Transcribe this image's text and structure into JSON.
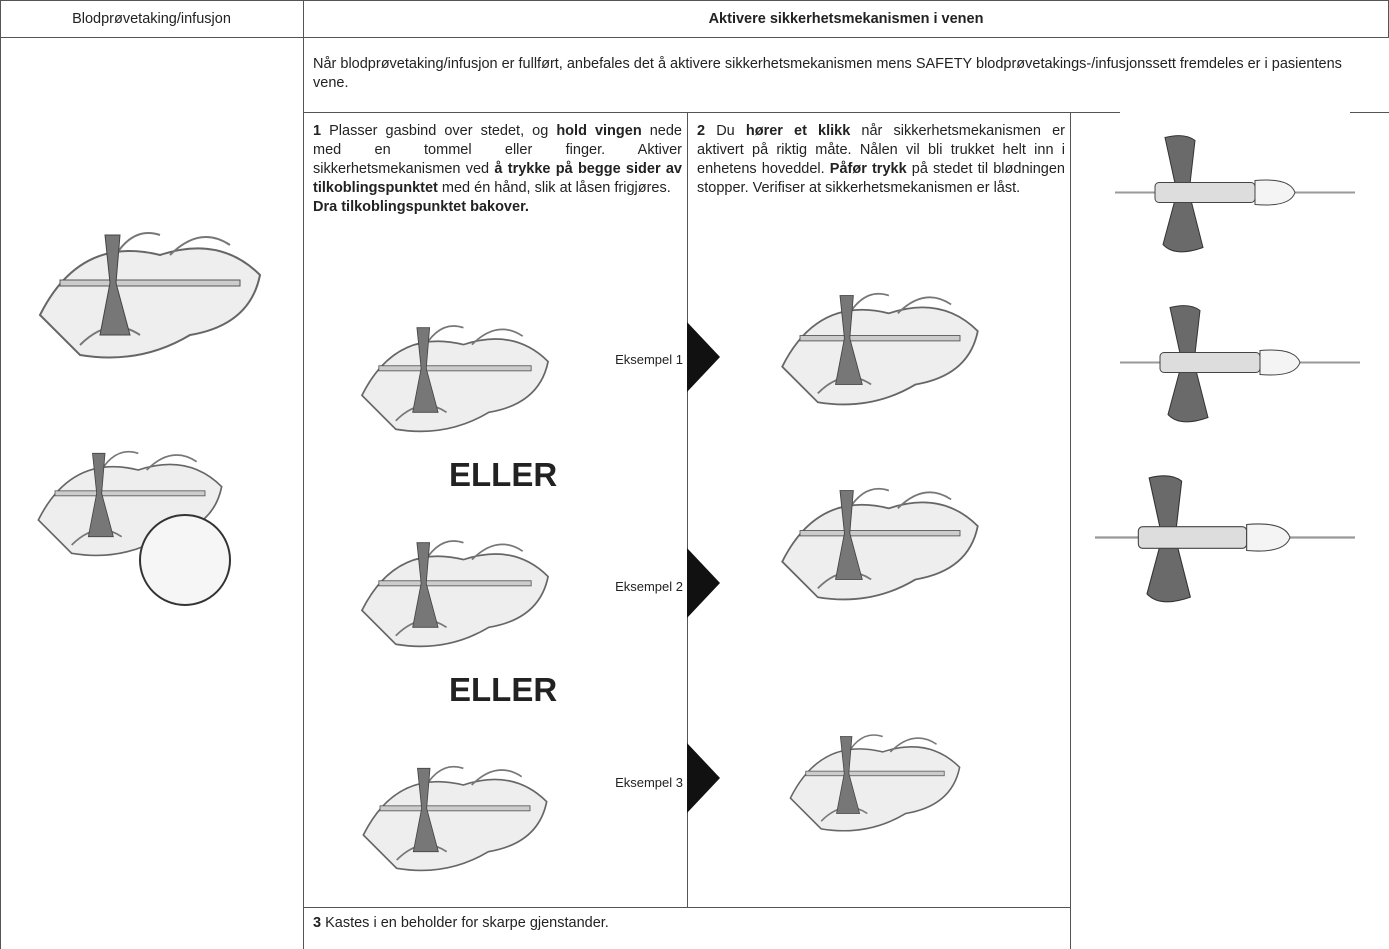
{
  "header": {
    "left": "Blodprøvetaking/infusjon",
    "right": "Aktivere sikkerhetsmekanismen i venen"
  },
  "intro": "Når blodprøvetaking/infusjon er fullført, anbefales det å aktivere sikkerhetsmekanismen mens SAFETY blodprøvetakings-/infusjonssett fremdeles er i pasientens vene.",
  "step1": {
    "runs": [
      {
        "text": "1",
        "bold": true
      },
      {
        "text": " Plasser gasbind over stedet, og ",
        "bold": false
      },
      {
        "text": "hold vingen",
        "bold": true
      },
      {
        "text": " nede med en tommel eller finger. Aktiver sikkerhetsmekanismen ved ",
        "bold": false
      },
      {
        "text": "å trykke på begge sider av tilkoblingspunktet",
        "bold": true
      },
      {
        "text": " med én hånd, slik at låsen frigjøres.",
        "bold": false
      },
      {
        "text": "Dra tilkoblingspunktet bakover.",
        "bold": true,
        "block": true
      }
    ]
  },
  "step2": {
    "runs": [
      {
        "text": "2",
        "bold": true
      },
      {
        "text": " Du ",
        "bold": false
      },
      {
        "text": "hører et klikk",
        "bold": true
      },
      {
        "text": " når sikkerhetsmekanismen er aktivert på riktig måte. Nålen vil bli trukket helt inn i enhetens hoveddel. ",
        "bold": false
      },
      {
        "text": "Påfør trykk",
        "bold": true
      },
      {
        "text": " på stedet til blødningen stopper. Verifiser at sikkerhetsmekanismen er låst.",
        "bold": false
      }
    ]
  },
  "or_labels": [
    "ELLER",
    "ELLER"
  ],
  "examples": [
    "Eksempel 1",
    "Eksempel 2",
    "Eksempel 3"
  ],
  "step3": {
    "runs": [
      {
        "text": "3",
        "bold": true
      },
      {
        "text": " Kastes i en beholder for skarpe gjenstander.",
        "bold": false
      }
    ]
  }
}
